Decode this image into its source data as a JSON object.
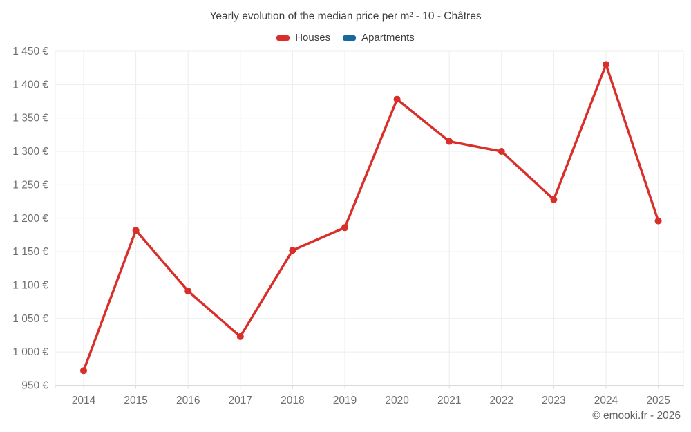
{
  "title": "Yearly evolution of the median price per m² - 10 - Châtres",
  "footer": "© emooki.fr - 2026",
  "colors": {
    "houses": "#d92f2b",
    "apartments": "#17699c",
    "grid": "#ececec",
    "axis": "#d9d9d9",
    "axis_label": "#6e6e6e"
  },
  "chart_data": {
    "type": "line",
    "title": "Yearly evolution of the median price per m² - 10 - Châtres",
    "categories": [
      "2014",
      "2015",
      "2016",
      "2017",
      "2018",
      "2019",
      "2020",
      "2021",
      "2022",
      "2023",
      "2024",
      "2025"
    ],
    "series": [
      {
        "name": "Houses",
        "color": "#d92f2b",
        "values": [
          972,
          1182,
          1091,
          1023,
          1152,
          1186,
          1378,
          1315,
          1300,
          1228,
          1430,
          1196
        ]
      },
      {
        "name": "Apartments",
        "color": "#17699c",
        "values": []
      }
    ],
    "xlabel": "",
    "ylabel": "",
    "y_suffix": " €",
    "ylim": [
      950,
      1450
    ],
    "ytick_step": 50,
    "grid": true,
    "legend_position": "top",
    "legend_entries": [
      "Houses",
      "Apartments"
    ]
  }
}
